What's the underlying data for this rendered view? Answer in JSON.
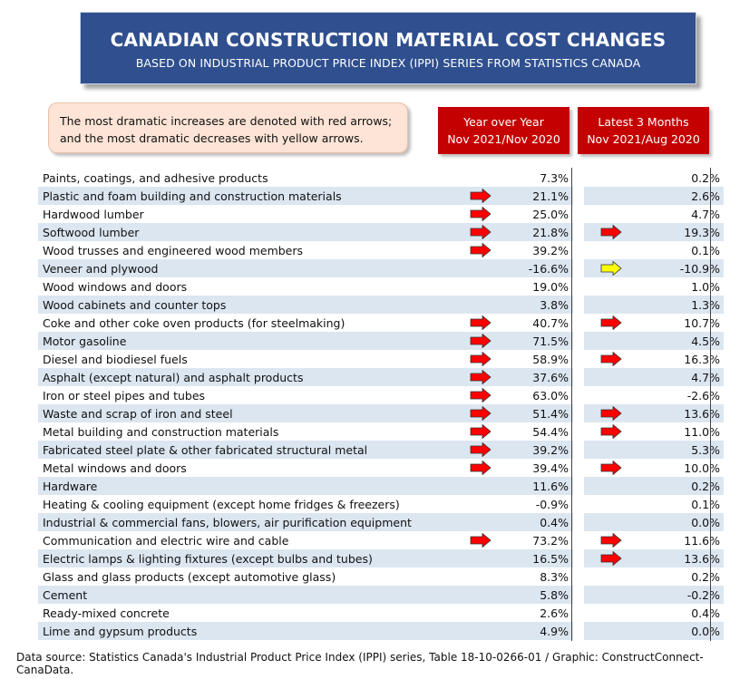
{
  "title": "CANADIAN CONSTRUCTION MATERIAL COST CHANGES",
  "subtitle": "BASED ON INDUSTRIAL PRODUCT PRICE INDEX (IPPI) SERIES FROM STATISTICS CANADA",
  "note": {
    "line1": "The most dramatic increases are denoted with red arrows;",
    "line2": "and the most dramatic decreases with yellow arrows."
  },
  "columns": [
    {
      "line1": "Year over Year",
      "line2": "Nov 2021/Nov 2020"
    },
    {
      "line1": "Latest 3 Months",
      "line2": "Nov 2021/Aug 2020"
    }
  ],
  "colors": {
    "red_arrow": "#ff0000",
    "yellow_arrow": "#ffff00",
    "header": "#c40000",
    "title_bg": "#2f4f8f",
    "row_alt": "#dce6f1"
  },
  "chart_data": {
    "type": "table",
    "rows": [
      {
        "label": "Paints, coatings, and adhesive products",
        "yoy": "7.3%",
        "yoy_arrow": "",
        "m3": "0.2%",
        "m3_arrow": ""
      },
      {
        "label": "Plastic and foam building and construction materials",
        "yoy": "21.1%",
        "yoy_arrow": "red",
        "m3": "2.6%",
        "m3_arrow": ""
      },
      {
        "label": "Hardwood lumber",
        "yoy": "25.0%",
        "yoy_arrow": "red",
        "m3": "4.7%",
        "m3_arrow": ""
      },
      {
        "label": "Softwood lumber",
        "yoy": "21.8%",
        "yoy_arrow": "red",
        "m3": "19.3%",
        "m3_arrow": "red"
      },
      {
        "label": "Wood trusses and engineered wood members",
        "yoy": "39.2%",
        "yoy_arrow": "red",
        "m3": "0.1%",
        "m3_arrow": ""
      },
      {
        "label": "Veneer and plywood",
        "yoy": "-16.6%",
        "yoy_arrow": "",
        "m3": "-10.9%",
        "m3_arrow": "yellow"
      },
      {
        "label": "Wood windows and doors",
        "yoy": "19.0%",
        "yoy_arrow": "",
        "m3": "1.0%",
        "m3_arrow": ""
      },
      {
        "label": "Wood cabinets and counter tops",
        "yoy": "3.8%",
        "yoy_arrow": "",
        "m3": "1.3%",
        "m3_arrow": ""
      },
      {
        "label": "Coke and other coke oven products (for steelmaking)",
        "yoy": "40.7%",
        "yoy_arrow": "red",
        "m3": "10.7%",
        "m3_arrow": "red"
      },
      {
        "label": "Motor gasoline",
        "yoy": "71.5%",
        "yoy_arrow": "red",
        "m3": "4.5%",
        "m3_arrow": ""
      },
      {
        "label": "Diesel and biodiesel fuels",
        "yoy": "58.9%",
        "yoy_arrow": "red",
        "m3": "16.3%",
        "m3_arrow": "red"
      },
      {
        "label": "Asphalt (except natural) and asphalt products",
        "yoy": "37.6%",
        "yoy_arrow": "red",
        "m3": "4.7%",
        "m3_arrow": ""
      },
      {
        "label": "Iron or steel pipes and tubes",
        "yoy": "63.0%",
        "yoy_arrow": "red",
        "m3": "-2.6%",
        "m3_arrow": ""
      },
      {
        "label": "Waste and scrap of iron and steel",
        "yoy": "51.4%",
        "yoy_arrow": "red",
        "m3": "13.6%",
        "m3_arrow": "red"
      },
      {
        "label": "Metal building and construction materials",
        "yoy": "54.4%",
        "yoy_arrow": "red",
        "m3": "11.0%",
        "m3_arrow": "red"
      },
      {
        "label": "Fabricated steel plate & other fabricated structural metal",
        "yoy": "39.2%",
        "yoy_arrow": "red",
        "m3": "5.3%",
        "m3_arrow": ""
      },
      {
        "label": "Metal windows and doors",
        "yoy": "39.4%",
        "yoy_arrow": "red",
        "m3": "10.0%",
        "m3_arrow": "red"
      },
      {
        "label": "Hardware",
        "yoy": "11.6%",
        "yoy_arrow": "",
        "m3": "0.2%",
        "m3_arrow": ""
      },
      {
        "label": "Heating & cooling equipment (except home fridges & freezers)",
        "yoy": "-0.9%",
        "yoy_arrow": "",
        "m3": "0.1%",
        "m3_arrow": ""
      },
      {
        "label": "Industrial & commercial fans, blowers, air purification equipment",
        "yoy": "0.4%",
        "yoy_arrow": "",
        "m3": "0.0%",
        "m3_arrow": ""
      },
      {
        "label": "Communication and electric wire and cable",
        "yoy": "73.2%",
        "yoy_arrow": "red",
        "m3": "11.6%",
        "m3_arrow": "red"
      },
      {
        "label": "Electric lamps & lighting fixtures (except bulbs and tubes)",
        "yoy": "16.5%",
        "yoy_arrow": "",
        "m3": "13.6%",
        "m3_arrow": "red"
      },
      {
        "label": "Glass and glass products (except automotive glass)",
        "yoy": "8.3%",
        "yoy_arrow": "",
        "m3": "0.2%",
        "m3_arrow": ""
      },
      {
        "label": "Cement",
        "yoy": "5.8%",
        "yoy_arrow": "",
        "m3": "-0.2%",
        "m3_arrow": ""
      },
      {
        "label": "Ready-mixed concrete",
        "yoy": "2.6%",
        "yoy_arrow": "",
        "m3": "0.4%",
        "m3_arrow": ""
      },
      {
        "label": "Lime and gypsum products",
        "yoy": "4.9%",
        "yoy_arrow": "",
        "m3": "0.0%",
        "m3_arrow": ""
      }
    ]
  },
  "source": "Data source: Statistics Canada's Industrial Product Price Index (IPPI) series, Table 18-10-0266-01 / Graphic: ConstructConnect-CanaData."
}
